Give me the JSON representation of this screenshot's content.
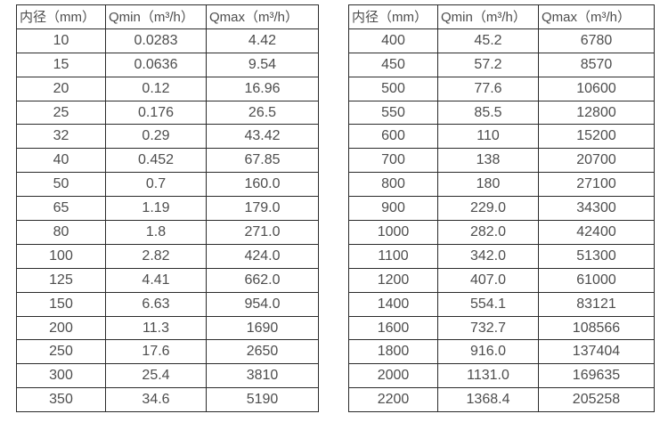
{
  "tables": [
    {
      "name": "flow-rate-table-small-diameters",
      "headers": [
        "内径（mm）",
        "Qmin（m³/h）",
        "Qmax（m³/h）"
      ],
      "rows": [
        [
          "10",
          "0.0283",
          "4.42"
        ],
        [
          "15",
          "0.0636",
          "9.54"
        ],
        [
          "20",
          "0.12",
          "16.96"
        ],
        [
          "25",
          "0.176",
          "26.5"
        ],
        [
          "32",
          "0.29",
          "43.42"
        ],
        [
          "40",
          "0.452",
          "67.85"
        ],
        [
          "50",
          "0.7",
          "160.0"
        ],
        [
          "65",
          "1.19",
          "179.0"
        ],
        [
          "80",
          "1.8",
          "271.0"
        ],
        [
          "100",
          "2.82",
          "424.0"
        ],
        [
          "125",
          "4.41",
          "662.0"
        ],
        [
          "150",
          "6.63",
          "954.0"
        ],
        [
          "200",
          "11.3",
          "1690"
        ],
        [
          "250",
          "17.6",
          "2650"
        ],
        [
          "300",
          "25.4",
          "3810"
        ],
        [
          "350",
          "34.6",
          "5190"
        ]
      ]
    },
    {
      "name": "flow-rate-table-large-diameters",
      "headers": [
        "内径（mm）",
        "Qmin（m³/h）",
        "Qmax（m³/h）"
      ],
      "rows": [
        [
          "400",
          "45.2",
          "6780"
        ],
        [
          "450",
          "57.2",
          "8570"
        ],
        [
          "500",
          "77.6",
          "10600"
        ],
        [
          "550",
          "85.5",
          "12800"
        ],
        [
          "600",
          "110",
          "15200"
        ],
        [
          "700",
          "138",
          "20700"
        ],
        [
          "800",
          "180",
          "27100"
        ],
        [
          "900",
          "229.0",
          "34300"
        ],
        [
          "1000",
          "282.0",
          "42400"
        ],
        [
          "1100",
          "342.0",
          "51300"
        ],
        [
          "1200",
          "407.0",
          "61000"
        ],
        [
          "1400",
          "554.1",
          "83121"
        ],
        [
          "1600",
          "732.7",
          "108566"
        ],
        [
          "1800",
          "916.0",
          "137404"
        ],
        [
          "2000",
          "1131.0",
          "169635"
        ],
        [
          "2200",
          "1368.4",
          "205258"
        ]
      ]
    }
  ],
  "colors": {
    "text": "#4d4d4d",
    "border": "#2b2b2b",
    "background": "#ffffff"
  }
}
